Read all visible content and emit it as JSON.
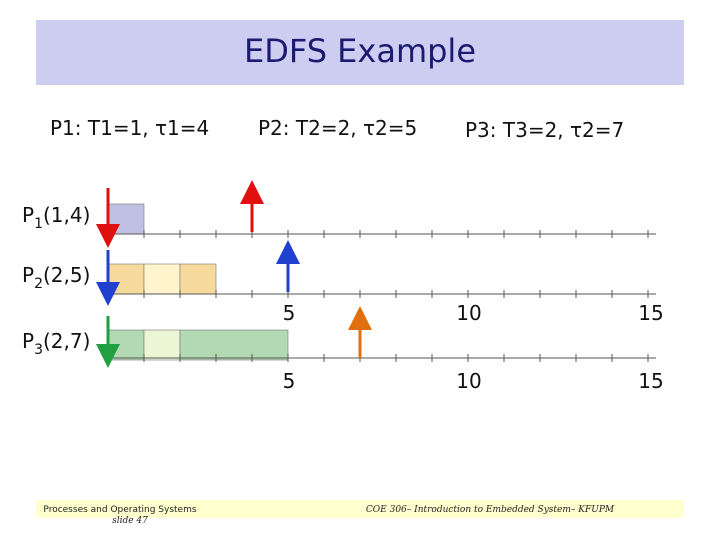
{
  "title": "EDFS Example",
  "processes": [
    "P1: T1=1, τ1=4",
    "P2: T2=2, τ2=5",
    "P3: T3=2, τ2=7"
  ],
  "rows": [
    {
      "name": "P",
      "sub": "1",
      "params": "(1,4)"
    },
    {
      "name": "P",
      "sub": "2",
      "params": "(2,5)"
    },
    {
      "name": "P",
      "sub": "3",
      "params": "(2,7)"
    }
  ],
  "axis_labels_upper": [
    "5",
    "10",
    "15"
  ],
  "axis_labels_lower": [
    "5",
    "10",
    "15"
  ],
  "footer": {
    "left": [
      "Processes and Operating Systems",
      "slide 47"
    ],
    "right": "COE 306– Introduction to Embedded System– KFUPM"
  }
}
